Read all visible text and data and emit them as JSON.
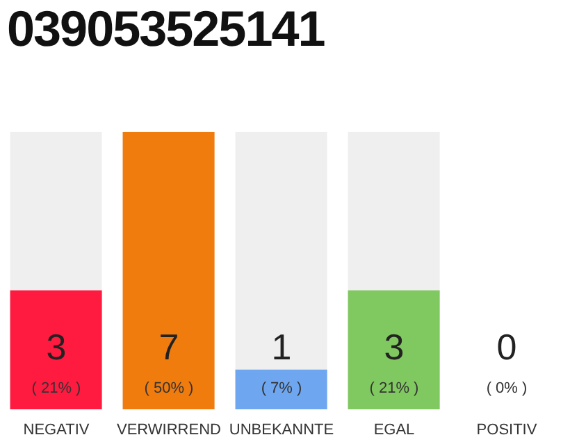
{
  "chart_data": {
    "type": "bar",
    "title": "039053525141",
    "categories": [
      "NEGATIV",
      "VERWIRREND",
      "UNBEKANNTE",
      "EGAL",
      "POSITIV"
    ],
    "values": [
      3,
      7,
      1,
      3,
      0
    ],
    "colors": [
      "#ff1a40",
      "#f07c0e",
      "#6ea6f0",
      "#80c860",
      "#d8d8d8"
    ],
    "data_labels": true,
    "annotations": [
      "( 21% )",
      "( 50% )",
      "( 7% )",
      "( 21% )",
      "( 0% )"
    ]
  }
}
